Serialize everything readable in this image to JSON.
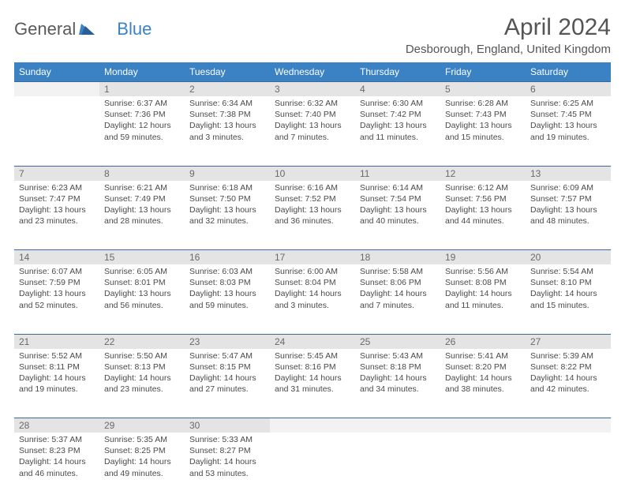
{
  "logo": {
    "text1": "General",
    "text2": "Blue"
  },
  "title": "April 2024",
  "location": "Desborough, England, United Kingdom",
  "colors": {
    "header_bg": "#3b82c4",
    "header_fg": "#ffffff",
    "daynum_bg": "#e4e4e4",
    "daynum_fg": "#6a6a6a",
    "empty_bg": "#f2f2f2",
    "text": "#4a4a4a",
    "rule": "#3b6a9a"
  },
  "weekdays": [
    "Sunday",
    "Monday",
    "Tuesday",
    "Wednesday",
    "Thursday",
    "Friday",
    "Saturday"
  ],
  "weeks": [
    {
      "nums": [
        "",
        "1",
        "2",
        "3",
        "4",
        "5",
        "6"
      ],
      "cells": [
        [
          "",
          "",
          "",
          ""
        ],
        [
          "Sunrise: 6:37 AM",
          "Sunset: 7:36 PM",
          "Daylight: 12 hours",
          "and 59 minutes."
        ],
        [
          "Sunrise: 6:34 AM",
          "Sunset: 7:38 PM",
          "Daylight: 13 hours",
          "and 3 minutes."
        ],
        [
          "Sunrise: 6:32 AM",
          "Sunset: 7:40 PM",
          "Daylight: 13 hours",
          "and 7 minutes."
        ],
        [
          "Sunrise: 6:30 AM",
          "Sunset: 7:42 PM",
          "Daylight: 13 hours",
          "and 11 minutes."
        ],
        [
          "Sunrise: 6:28 AM",
          "Sunset: 7:43 PM",
          "Daylight: 13 hours",
          "and 15 minutes."
        ],
        [
          "Sunrise: 6:25 AM",
          "Sunset: 7:45 PM",
          "Daylight: 13 hours",
          "and 19 minutes."
        ]
      ]
    },
    {
      "nums": [
        "7",
        "8",
        "9",
        "10",
        "11",
        "12",
        "13"
      ],
      "cells": [
        [
          "Sunrise: 6:23 AM",
          "Sunset: 7:47 PM",
          "Daylight: 13 hours",
          "and 23 minutes."
        ],
        [
          "Sunrise: 6:21 AM",
          "Sunset: 7:49 PM",
          "Daylight: 13 hours",
          "and 28 minutes."
        ],
        [
          "Sunrise: 6:18 AM",
          "Sunset: 7:50 PM",
          "Daylight: 13 hours",
          "and 32 minutes."
        ],
        [
          "Sunrise: 6:16 AM",
          "Sunset: 7:52 PM",
          "Daylight: 13 hours",
          "and 36 minutes."
        ],
        [
          "Sunrise: 6:14 AM",
          "Sunset: 7:54 PM",
          "Daylight: 13 hours",
          "and 40 minutes."
        ],
        [
          "Sunrise: 6:12 AM",
          "Sunset: 7:56 PM",
          "Daylight: 13 hours",
          "and 44 minutes."
        ],
        [
          "Sunrise: 6:09 AM",
          "Sunset: 7:57 PM",
          "Daylight: 13 hours",
          "and 48 minutes."
        ]
      ]
    },
    {
      "nums": [
        "14",
        "15",
        "16",
        "17",
        "18",
        "19",
        "20"
      ],
      "cells": [
        [
          "Sunrise: 6:07 AM",
          "Sunset: 7:59 PM",
          "Daylight: 13 hours",
          "and 52 minutes."
        ],
        [
          "Sunrise: 6:05 AM",
          "Sunset: 8:01 PM",
          "Daylight: 13 hours",
          "and 56 minutes."
        ],
        [
          "Sunrise: 6:03 AM",
          "Sunset: 8:03 PM",
          "Daylight: 13 hours",
          "and 59 minutes."
        ],
        [
          "Sunrise: 6:00 AM",
          "Sunset: 8:04 PM",
          "Daylight: 14 hours",
          "and 3 minutes."
        ],
        [
          "Sunrise: 5:58 AM",
          "Sunset: 8:06 PM",
          "Daylight: 14 hours",
          "and 7 minutes."
        ],
        [
          "Sunrise: 5:56 AM",
          "Sunset: 8:08 PM",
          "Daylight: 14 hours",
          "and 11 minutes."
        ],
        [
          "Sunrise: 5:54 AM",
          "Sunset: 8:10 PM",
          "Daylight: 14 hours",
          "and 15 minutes."
        ]
      ]
    },
    {
      "nums": [
        "21",
        "22",
        "23",
        "24",
        "25",
        "26",
        "27"
      ],
      "cells": [
        [
          "Sunrise: 5:52 AM",
          "Sunset: 8:11 PM",
          "Daylight: 14 hours",
          "and 19 minutes."
        ],
        [
          "Sunrise: 5:50 AM",
          "Sunset: 8:13 PM",
          "Daylight: 14 hours",
          "and 23 minutes."
        ],
        [
          "Sunrise: 5:47 AM",
          "Sunset: 8:15 PM",
          "Daylight: 14 hours",
          "and 27 minutes."
        ],
        [
          "Sunrise: 5:45 AM",
          "Sunset: 8:16 PM",
          "Daylight: 14 hours",
          "and 31 minutes."
        ],
        [
          "Sunrise: 5:43 AM",
          "Sunset: 8:18 PM",
          "Daylight: 14 hours",
          "and 34 minutes."
        ],
        [
          "Sunrise: 5:41 AM",
          "Sunset: 8:20 PM",
          "Daylight: 14 hours",
          "and 38 minutes."
        ],
        [
          "Sunrise: 5:39 AM",
          "Sunset: 8:22 PM",
          "Daylight: 14 hours",
          "and 42 minutes."
        ]
      ]
    },
    {
      "nums": [
        "28",
        "29",
        "30",
        "",
        "",
        "",
        ""
      ],
      "cells": [
        [
          "Sunrise: 5:37 AM",
          "Sunset: 8:23 PM",
          "Daylight: 14 hours",
          "and 46 minutes."
        ],
        [
          "Sunrise: 5:35 AM",
          "Sunset: 8:25 PM",
          "Daylight: 14 hours",
          "and 49 minutes."
        ],
        [
          "Sunrise: 5:33 AM",
          "Sunset: 8:27 PM",
          "Daylight: 14 hours",
          "and 53 minutes."
        ],
        [
          "",
          "",
          "",
          ""
        ],
        [
          "",
          "",
          "",
          ""
        ],
        [
          "",
          "",
          "",
          ""
        ],
        [
          "",
          "",
          "",
          ""
        ]
      ]
    }
  ]
}
